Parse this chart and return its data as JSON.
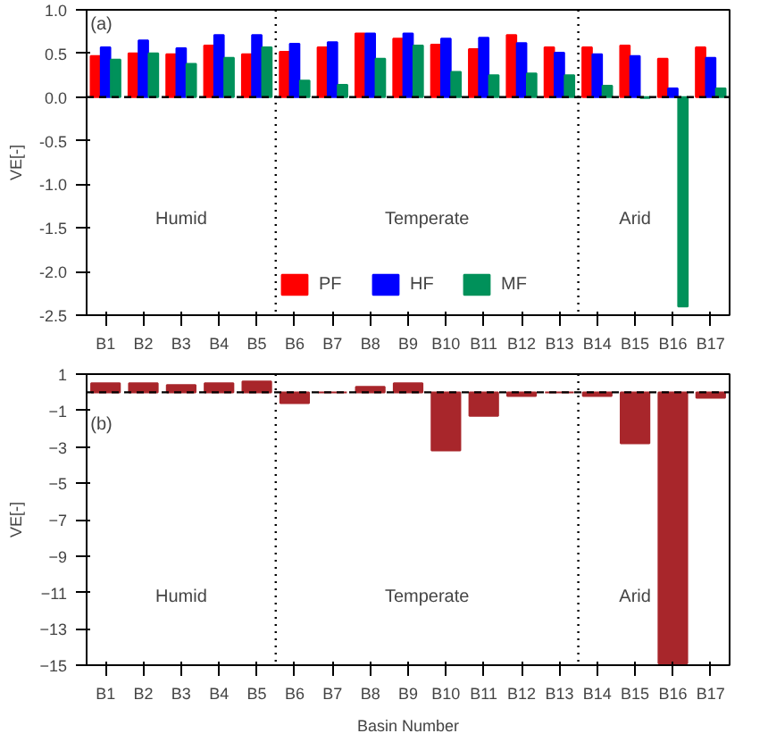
{
  "chart_data": [
    {
      "type": "bar",
      "ylabel": "VE[-]",
      "categories": [
        "B1",
        "B2",
        "B3",
        "B4",
        "B5",
        "B6",
        "B7",
        "B8",
        "B9",
        "B10",
        "B11",
        "B12",
        "B13",
        "B14",
        "B15",
        "B16",
        "B17"
      ],
      "series": [
        {
          "name": "PF",
          "color": "#ff0000",
          "values": [
            0.47,
            0.5,
            0.49,
            0.59,
            0.49,
            0.52,
            0.57,
            0.73,
            0.67,
            0.6,
            0.55,
            0.71,
            0.57,
            0.57,
            0.59,
            0.44,
            0.57
          ]
        },
        {
          "name": "HF",
          "color": "#0000ff",
          "values": [
            0.57,
            0.65,
            0.56,
            0.71,
            0.71,
            0.61,
            0.63,
            0.73,
            0.73,
            0.67,
            0.68,
            0.62,
            0.51,
            0.49,
            0.47,
            0.1,
            0.45
          ]
        },
        {
          "name": "MF",
          "color": "#00915a",
          "values": [
            0.43,
            0.5,
            0.38,
            0.45,
            0.57,
            0.19,
            0.14,
            0.44,
            0.59,
            0.29,
            0.25,
            0.27,
            0.25,
            0.13,
            -0.01,
            -2.4,
            0.1
          ]
        }
      ],
      "ylim": [
        -2.5,
        1.0
      ],
      "yticks": [
        {
          "value": -2.5,
          "label": "-2.5"
        },
        {
          "value": -2.0,
          "label": "-2.0"
        },
        {
          "value": -1.5,
          "label": "-1.5"
        },
        {
          "value": -1.0,
          "label": "-1.0"
        },
        {
          "value": -0.5,
          "label": "-0.5"
        },
        {
          "value": 0.0,
          "label": "0.0"
        },
        {
          "value": 0.5,
          "label": "0.5"
        },
        {
          "value": 1.0,
          "label": "1.0"
        }
      ],
      "ref_lines": [
        {
          "axis": "y",
          "value": 0,
          "line_style": "dashed"
        }
      ],
      "annotations": [
        "(a)",
        "Humid",
        "Temperate",
        "Arid"
      ],
      "legend": "bottom",
      "grid": false
    },
    {
      "type": "bar",
      "ylabel": "VE[-]",
      "xlabel": "Basin Number",
      "categories": [
        "B1",
        "B2",
        "B3",
        "B4",
        "B5",
        "B6",
        "B7",
        "B8",
        "B9",
        "B10",
        "B11",
        "B12",
        "B13",
        "B14",
        "B15",
        "B16",
        "B17"
      ],
      "values": [
        0.5,
        0.5,
        0.4,
        0.5,
        0.6,
        -0.6,
        0,
        0.3,
        0.5,
        -3.2,
        -1.3,
        -0.2,
        0,
        -0.2,
        -2.8,
        -14.9,
        -0.3
      ],
      "color": "#a8262b",
      "ylim": [
        -15,
        1
      ],
      "yticks": [
        -15,
        -13,
        -11,
        -9,
        -7,
        -5,
        -3,
        -1,
        1
      ],
      "ref_lines": [
        {
          "axis": "y",
          "value": 0,
          "line_style": "dashed"
        }
      ],
      "annotations": [
        "(b)",
        "Humid",
        "Temperate",
        "Arid"
      ],
      "grid": false
    }
  ]
}
